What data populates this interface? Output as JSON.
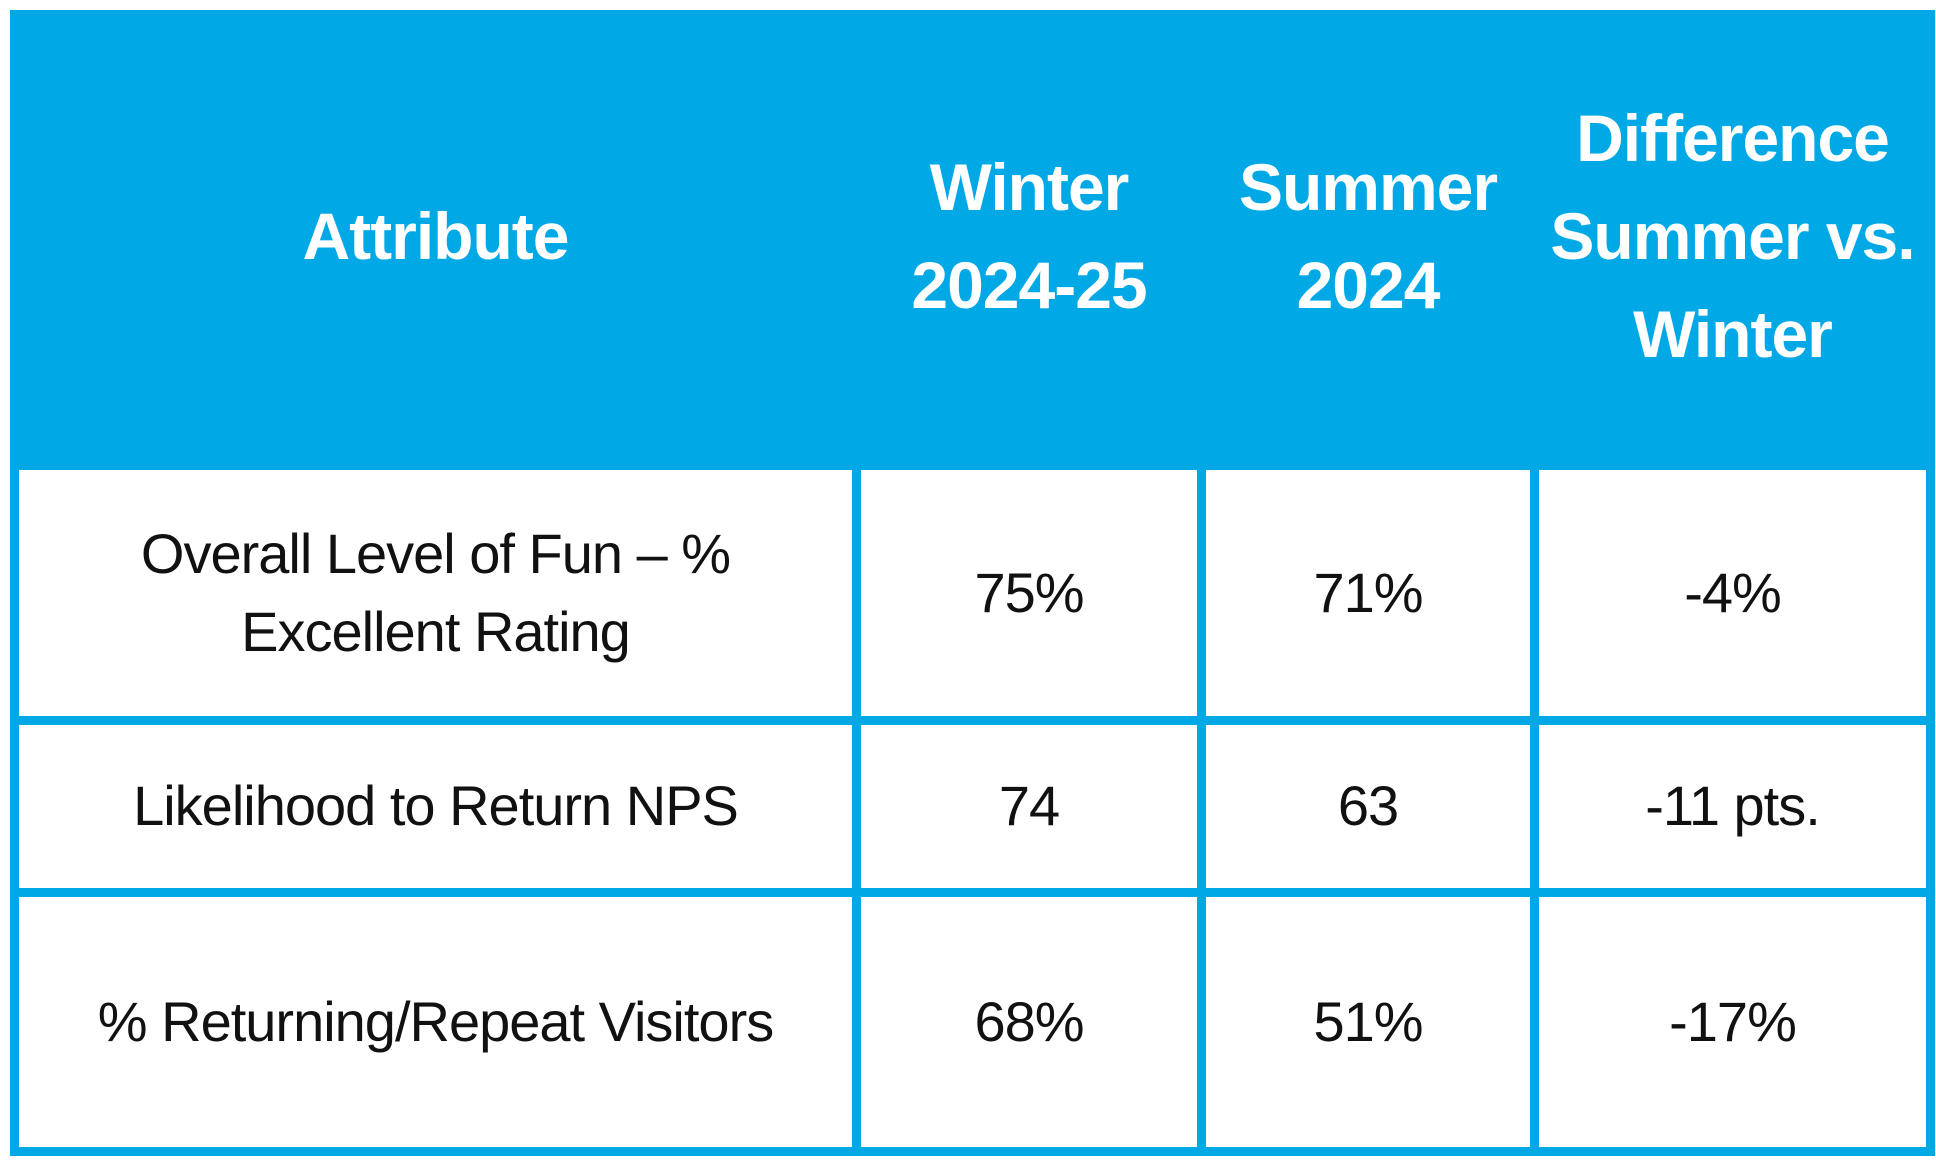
{
  "header": {
    "attribute": "Attribute",
    "winter": "Winter 2024-25",
    "summer": "Summer 2024",
    "difference": "Difference Summer vs. Winter"
  },
  "rows": [
    {
      "attribute": "Overall Level of Fun – % Excellent Rating",
      "winter": "75%",
      "summer": "71%",
      "difference": "-4%"
    },
    {
      "attribute": "Likelihood to Return NPS",
      "winter": "74",
      "summer": "63",
      "difference": "-11 pts."
    },
    {
      "attribute": "% Returning/Repeat Visitors",
      "winter": "68%",
      "summer": "51%",
      "difference": "-17%"
    }
  ],
  "colors": {
    "header_bg": "#00a9e6",
    "header_text": "#ffffff",
    "cell_bg": "#ffffff",
    "cell_text": "#111111"
  }
}
